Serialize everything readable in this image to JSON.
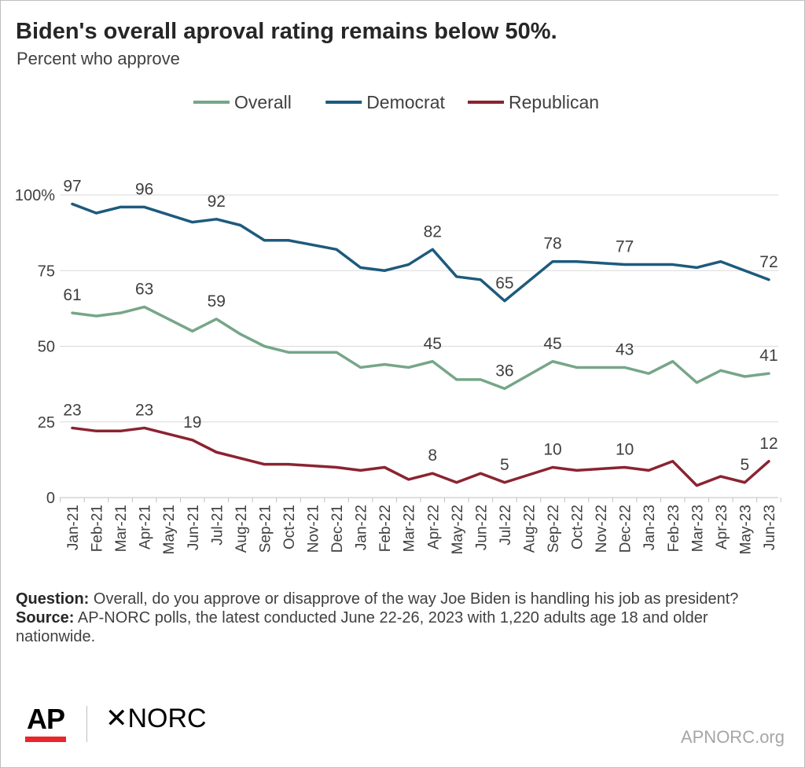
{
  "header": {
    "title": "Biden's overall aproval rating remains below 50%.",
    "subtitle": "Percent who approve"
  },
  "chart_data": {
    "type": "line",
    "x": [
      "Jan-21",
      "Feb-21",
      "Mar-21",
      "Apr-21",
      "May-21",
      "Jun-21",
      "Jul-21",
      "Aug-21",
      "Sep-21",
      "Oct-21",
      "Nov-21",
      "Dec-21",
      "Jan-22",
      "Feb-22",
      "Mar-22",
      "Apr-22",
      "May-22",
      "Jun-22",
      "Jul-22",
      "Aug-22",
      "Sep-22",
      "Oct-22",
      "Nov-22",
      "Dec-22",
      "Jan-23",
      "Feb-23",
      "Mar-23",
      "Apr-23",
      "May-23",
      "Jun-23"
    ],
    "ylim": [
      0,
      100
    ],
    "yticks": [
      {
        "value": 100,
        "label": "100%"
      },
      {
        "value": 75,
        "label": "75"
      },
      {
        "value": 50,
        "label": "50"
      },
      {
        "value": 25,
        "label": "25"
      },
      {
        "value": 0,
        "label": "0"
      }
    ],
    "grid": true,
    "legend": "top",
    "series": [
      {
        "name": "Overall",
        "color": "#76a688",
        "values": [
          61,
          60,
          61,
          63,
          59,
          55,
          59,
          54,
          50,
          48,
          48,
          48,
          43,
          44,
          43,
          45,
          39,
          39,
          36,
          null,
          45,
          43,
          43,
          43,
          41,
          45,
          38,
          42,
          40,
          41
        ],
        "labels": [
          {
            "i": 0,
            "text": "61"
          },
          {
            "i": 3,
            "text": "63"
          },
          {
            "i": 6,
            "text": "59"
          },
          {
            "i": 15,
            "text": "45"
          },
          {
            "i": 18,
            "text": "36"
          },
          {
            "i": 20,
            "text": "45"
          },
          {
            "i": 23,
            "text": "43"
          },
          {
            "i": 29,
            "text": "41"
          }
        ]
      },
      {
        "name": "Democrat",
        "color": "#1d5a7d",
        "values": [
          97,
          94,
          96,
          96,
          null,
          91,
          92,
          90,
          85,
          85,
          null,
          82,
          76,
          75,
          77,
          82,
          73,
          72,
          65,
          null,
          78,
          78,
          null,
          77,
          77,
          77,
          76,
          78,
          75,
          72
        ],
        "labels": [
          {
            "i": 0,
            "text": "97"
          },
          {
            "i": 3,
            "text": "96"
          },
          {
            "i": 6,
            "text": "92"
          },
          {
            "i": 15,
            "text": "82"
          },
          {
            "i": 18,
            "text": "65"
          },
          {
            "i": 20,
            "text": "78"
          },
          {
            "i": 23,
            "text": "77"
          },
          {
            "i": 29,
            "text": "72"
          }
        ]
      },
      {
        "name": "Republican",
        "color": "#8b2331",
        "values": [
          23,
          22,
          22,
          23,
          null,
          19,
          15,
          13,
          11,
          11,
          null,
          10,
          9,
          10,
          6,
          8,
          5,
          8,
          5,
          null,
          10,
          9,
          null,
          10,
          9,
          12,
          4,
          7,
          5,
          12
        ],
        "labels": [
          {
            "i": 0,
            "text": "23"
          },
          {
            "i": 3,
            "text": "23"
          },
          {
            "i": 5,
            "text": "19"
          },
          {
            "i": 15,
            "text": "8"
          },
          {
            "i": 18,
            "text": "5"
          },
          {
            "i": 20,
            "text": "10"
          },
          {
            "i": 23,
            "text": "10"
          },
          {
            "i": 28,
            "text": "5"
          },
          {
            "i": 29,
            "text": "12"
          }
        ]
      }
    ]
  },
  "notes": {
    "question_label": "Question:",
    "question_text": " Overall, do you approve or disapprove of the way Joe Biden is handling his job as president?",
    "source_label": "Source:",
    "source_text": " AP-NORC polls, the latest conducted June 22-26, 2023 with 1,220  adults age 18 and older nationwide."
  },
  "footer": {
    "ap_logo": "AP",
    "norc_logo": "✕NORC",
    "site": "APNORC.org"
  }
}
